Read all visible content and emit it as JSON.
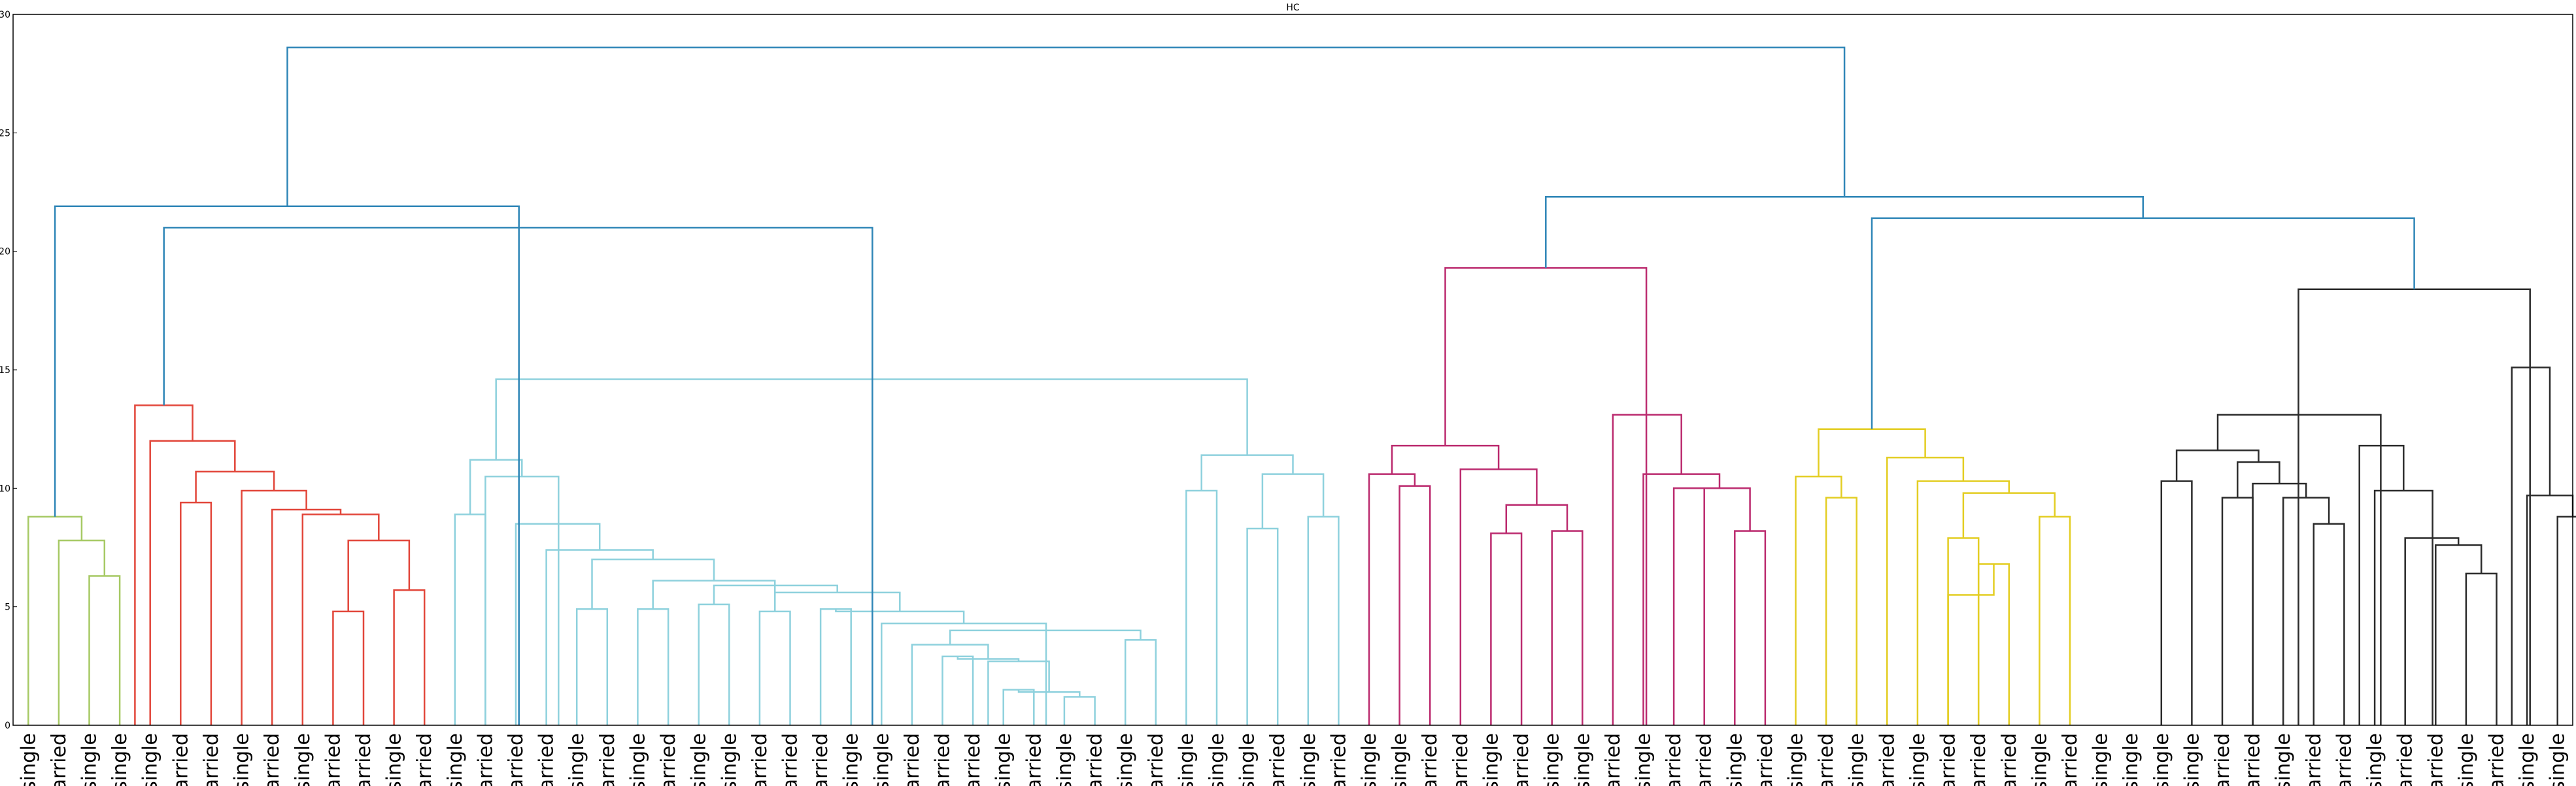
{
  "chart_data": {
    "type": "dendrogram",
    "title": "HC",
    "xlabel": "",
    "ylabel": "",
    "ylim": [
      0,
      30
    ],
    "yticks": [
      0,
      5,
      10,
      15,
      20,
      25,
      30
    ],
    "grid": false,
    "leaves": [
      "single",
      "married",
      "single",
      "single",
      "single",
      "married",
      "married",
      "single",
      "married",
      "single",
      "married",
      "married",
      "single",
      "married",
      "single",
      "married",
      "married",
      "married",
      "single",
      "married",
      "single",
      "married",
      "single",
      "single",
      "married",
      "married",
      "married",
      "single",
      "single",
      "married",
      "married",
      "married",
      "single",
      "married",
      "single",
      "married",
      "single",
      "married",
      "single",
      "single",
      "single",
      "married",
      "single",
      "married",
      "single",
      "single",
      "married",
      "married",
      "single",
      "married",
      "single",
      "single",
      "married",
      "single",
      "married",
      "married",
      "single",
      "married",
      "single",
      "married",
      "single",
      "married",
      "single",
      "married",
      "married",
      "married",
      "single",
      "married",
      "single",
      "single",
      "single",
      "single",
      "married",
      "married",
      "single",
      "married",
      "married",
      "single",
      "married",
      "married",
      "single",
      "married",
      "single",
      "single"
    ],
    "colors": {
      "green": "#a6c964",
      "red": "#e2463a",
      "cyan": "#8ed1dd",
      "magenta": "#bb2a6e",
      "yellow": "#e3cd22",
      "black": "#2b2b2b",
      "top": "#2f86b7"
    },
    "links": [
      {
        "l": 2,
        "r": 3,
        "h": 6.3,
        "c": "green"
      },
      {
        "l": 1,
        "r": 2.5,
        "h": 7.8,
        "c": "green"
      },
      {
        "l": 0,
        "r": 1.75,
        "h": 8.8,
        "c": "green"
      },
      {
        "l": 10,
        "r": 11,
        "h": 4.8,
        "c": "red"
      },
      {
        "l": 12,
        "r": 13,
        "h": 5.7,
        "c": "red"
      },
      {
        "l": 10.5,
        "r": 12.5,
        "h": 7.8,
        "c": "red"
      },
      {
        "l": 9,
        "r": 11.5,
        "h": 8.9,
        "c": "red"
      },
      {
        "l": 8,
        "r": 10.25,
        "h": 9.1,
        "c": "red"
      },
      {
        "l": 7,
        "r": 9.125,
        "h": 9.9,
        "c": "red"
      },
      {
        "l": 5,
        "r": 6,
        "h": 9.4,
        "c": "red"
      },
      {
        "l": 5.5,
        "r": 8.0625,
        "h": 10.7,
        "c": "red"
      },
      {
        "l": 4,
        "r": 6.78,
        "h": 12.0,
        "c": "red"
      },
      {
        "l": 3.5,
        "r": 5.39,
        "h": 13.5,
        "c": "red"
      },
      {
        "l": 14,
        "r": 15,
        "h": 8.9,
        "c": "cyan"
      },
      {
        "l": 18,
        "r": 19,
        "h": 4.9,
        "c": "cyan"
      },
      {
        "l": 20,
        "r": 21,
        "h": 4.9,
        "c": "cyan"
      },
      {
        "l": 22,
        "r": 23,
        "h": 5.1,
        "c": "cyan"
      },
      {
        "l": 24,
        "r": 25,
        "h": 4.8,
        "c": "cyan"
      },
      {
        "l": 26,
        "r": 27,
        "h": 4.9,
        "c": "cyan"
      },
      {
        "l": 30,
        "r": 31,
        "h": 2.9,
        "c": "cyan"
      },
      {
        "l": 32,
        "r": 33,
        "h": 1.5,
        "c": "cyan"
      },
      {
        "l": 34,
        "r": 35,
        "h": 1.2,
        "c": "cyan"
      },
      {
        "l": 32.5,
        "r": 34.5,
        "h": 1.4,
        "c": "cyan"
      },
      {
        "l": 31.5,
        "r": 33.5,
        "h": 2.7,
        "c": "cyan"
      },
      {
        "l": 30.5,
        "r": 32.5,
        "h": 2.8,
        "c": "cyan"
      },
      {
        "l": 29,
        "r": 31.5,
        "h": 3.4,
        "c": "cyan"
      },
      {
        "l": 36,
        "r": 37,
        "h": 3.6,
        "c": "cyan"
      },
      {
        "l": 30.25,
        "r": 36.5,
        "h": 4.0,
        "c": "cyan"
      },
      {
        "l": 28,
        "r": 33.4,
        "h": 4.3,
        "c": "cyan"
      },
      {
        "l": 26.5,
        "r": 30.7,
        "h": 4.8,
        "c": "cyan"
      },
      {
        "l": 24.5,
        "r": 28.6,
        "h": 5.6,
        "c": "cyan"
      },
      {
        "l": 22.5,
        "r": 26.55,
        "h": 5.9,
        "c": "cyan"
      },
      {
        "l": 20.5,
        "r": 24.5,
        "h": 6.1,
        "c": "cyan"
      },
      {
        "l": 18.5,
        "r": 22.5,
        "h": 7.0,
        "c": "cyan"
      },
      {
        "l": 17,
        "r": 20.5,
        "h": 7.4,
        "c": "cyan"
      },
      {
        "l": 16,
        "r": 18.75,
        "h": 8.5,
        "c": "cyan"
      },
      {
        "l": 15,
        "r": 17.4,
        "h": 10.5,
        "c": "cyan"
      },
      {
        "l": 14.5,
        "r": 16.2,
        "h": 11.2,
        "c": "cyan"
      },
      {
        "l": 38,
        "r": 39,
        "h": 9.9,
        "c": "cyan"
      },
      {
        "l": 40,
        "r": 41,
        "h": 8.3,
        "c": "cyan"
      },
      {
        "l": 42,
        "r": 43,
        "h": 8.8,
        "c": "cyan"
      },
      {
        "l": 40.5,
        "r": 42.5,
        "h": 10.6,
        "c": "cyan"
      },
      {
        "l": 38.5,
        "r": 41.5,
        "h": 11.4,
        "c": "cyan"
      },
      {
        "l": 15.35,
        "r": 40,
        "h": 14.6,
        "c": "cyan"
      },
      {
        "l": 45,
        "r": 46,
        "h": 10.1,
        "c": "magenta"
      },
      {
        "l": 44,
        "r": 45.5,
        "h": 10.6,
        "c": "magenta"
      },
      {
        "l": 48,
        "r": 49,
        "h": 8.1,
        "c": "magenta"
      },
      {
        "l": 50,
        "r": 51,
        "h": 8.2,
        "c": "magenta"
      },
      {
        "l": 48.5,
        "r": 50.5,
        "h": 9.3,
        "c": "magenta"
      },
      {
        "l": 47,
        "r": 49.5,
        "h": 10.8,
        "c": "magenta"
      },
      {
        "l": 44.75,
        "r": 48.25,
        "h": 11.8,
        "c": "magenta"
      },
      {
        "l": 54,
        "r": 55,
        "h": 10.0,
        "c": "magenta"
      },
      {
        "l": 56,
        "r": 57,
        "h": 8.2,
        "c": "magenta"
      },
      {
        "l": 54.5,
        "r": 56.5,
        "h": 10.0,
        "c": "magenta"
      },
      {
        "l": 53,
        "r": 55.5,
        "h": 10.6,
        "c": "magenta"
      },
      {
        "l": 52,
        "r": 54.25,
        "h": 13.1,
        "c": "magenta"
      },
      {
        "l": 46.5,
        "r": 53.1,
        "h": 19.3,
        "c": "magenta"
      },
      {
        "l": 59,
        "r": 60,
        "h": 9.6,
        "c": "yellow"
      },
      {
        "l": 58,
        "r": 59.5,
        "h": 10.5,
        "c": "yellow"
      },
      {
        "l": 64,
        "r": 65,
        "h": 6.8,
        "c": "yellow"
      },
      {
        "l": 63,
        "r": 64.5,
        "h": 5.5,
        "c": "yellow"
      },
      {
        "l": 63,
        "r": 64,
        "h": 7.9,
        "c": "yellow"
      },
      {
        "l": 66,
        "r": 67,
        "h": 8.8,
        "c": "yellow"
      },
      {
        "l": 63.5,
        "r": 66.5,
        "h": 9.8,
        "c": "yellow"
      },
      {
        "l": 62,
        "r": 65,
        "h": 10.3,
        "c": "yellow"
      },
      {
        "l": 61,
        "r": 63.5,
        "h": 11.3,
        "c": "yellow"
      },
      {
        "l": 58.75,
        "r": 62.25,
        "h": 12.5,
        "c": "yellow"
      },
      {
        "l": 70,
        "r": 71,
        "h": 10.3,
        "c": "black"
      },
      {
        "l": 72,
        "r": 73,
        "h": 9.6,
        "c": "black"
      },
      {
        "l": 75,
        "r": 76,
        "h": 8.5,
        "c": "black"
      },
      {
        "l": 74,
        "r": 75.5,
        "h": 9.6,
        "c": "black"
      },
      {
        "l": 73,
        "r": 74.75,
        "h": 10.2,
        "c": "black"
      },
      {
        "l": 72.5,
        "r": 73.875,
        "h": 11.1,
        "c": "black"
      },
      {
        "l": 70.5,
        "r": 73.19,
        "h": 11.6,
        "c": "black"
      },
      {
        "l": 80,
        "r": 81,
        "h": 6.4,
        "c": "black"
      },
      {
        "l": 79,
        "r": 80.5,
        "h": 7.6,
        "c": "black"
      },
      {
        "l": 78,
        "r": 79.75,
        "h": 7.9,
        "c": "black"
      },
      {
        "l": 77,
        "r": 78.9,
        "h": 9.9,
        "c": "black"
      },
      {
        "l": 76.5,
        "r": 77.95,
        "h": 11.8,
        "c": "black"
      },
      {
        "l": 71.85,
        "r": 77.2,
        "h": 13.1,
        "c": "black"
      },
      {
        "l": 83,
        "r": 84,
        "h": 8.8,
        "c": "black"
      },
      {
        "l": 82,
        "r": 83.5,
        "h": 9.7,
        "c": "black"
      },
      {
        "l": 81.5,
        "r": 82.75,
        "h": 15.1,
        "c": "black"
      },
      {
        "l": 74.5,
        "r": 82.1,
        "h": 18.4,
        "c": "black"
      },
      {
        "l": 60.5,
        "r": 78.3,
        "h": 21.4,
        "c": "top"
      },
      {
        "l": 49.8,
        "r": 69.4,
        "h": 22.3,
        "c": "top"
      },
      {
        "l": 4.45,
        "r": 27.7,
        "h": 21.0,
        "c": "top"
      },
      {
        "l": 0.875,
        "r": 16.1,
        "h": 21.9,
        "c": "top"
      },
      {
        "l": 8.5,
        "r": 59.6,
        "h": 28.6,
        "c": "top"
      }
    ]
  }
}
